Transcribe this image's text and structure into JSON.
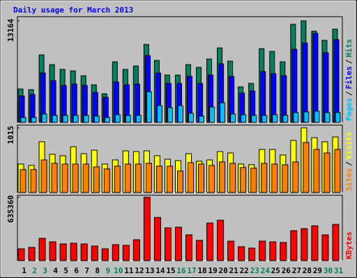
{
  "chart_data": [
    {
      "type": "bar",
      "title": "Daily usage for March 2013",
      "legend_separator": "/",
      "series": [
        {
          "name": "Hits",
          "color": "#00805c",
          "values": [
            4330,
            4240,
            8750,
            7490,
            6860,
            6680,
            6040,
            4870,
            3700,
            7850,
            6860,
            7310,
            10100,
            8030,
            6130,
            6130,
            7490,
            7130,
            8210,
            9650,
            7940,
            4600,
            5050,
            9560,
            9200,
            7850,
            12720,
            13164,
            11820,
            10640,
            12090
          ]
        },
        {
          "name": "Files",
          "color": "#0000ff",
          "values": [
            3430,
            3610,
            6400,
            5410,
            4780,
            4960,
            4780,
            3880,
            3250,
            5230,
            4870,
            4960,
            8660,
            6400,
            5050,
            5050,
            5950,
            5050,
            6130,
            7580,
            5950,
            3790,
            4060,
            6580,
            6310,
            6040,
            9470,
            10280,
            11550,
            9020,
            10730
          ]
        },
        {
          "name": "Pages",
          "color": "#00c0ff",
          "values": [
            630,
            630,
            1080,
            900,
            900,
            900,
            900,
            810,
            630,
            990,
            900,
            900,
            3970,
            2160,
            1890,
            2160,
            1170,
            810,
            1980,
            2530,
            1080,
            990,
            900,
            900,
            990,
            900,
            1260,
            1350,
            1440,
            1260,
            1260
          ]
        }
      ],
      "ylim": [
        0,
        13705
      ],
      "yticks": [
        13164
      ]
    },
    {
      "type": "bar",
      "legend_separator": "/",
      "series": [
        {
          "name": "Visits",
          "color": "#ffff00",
          "values": [
            447,
            425,
            796,
            600,
            578,
            719,
            610,
            665,
            447,
            512,
            654,
            643,
            654,
            578,
            523,
            501,
            610,
            491,
            512,
            643,
            621,
            447,
            436,
            676,
            676,
            589,
            818,
            1015,
            861,
            796,
            872
          ]
        },
        {
          "name": "Sites",
          "color": "#ff8000",
          "values": [
            360,
            360,
            512,
            458,
            447,
            447,
            447,
            403,
            371,
            414,
            447,
            447,
            458,
            414,
            414,
            338,
            469,
            447,
            425,
            480,
            458,
            392,
            382,
            458,
            447,
            436,
            480,
            785,
            676,
            621,
            676
          ]
        }
      ],
      "ylim": [
        0,
        1058
      ],
      "yticks": [
        1015
      ]
    },
    {
      "type": "bar",
      "series": [
        {
          "name": "KBytes",
          "color": "#ff0000",
          "values": [
            118700,
            132700,
            223400,
            188500,
            167600,
            174600,
            167600,
            146600,
            118700,
            160600,
            153600,
            209500,
            635360,
            432900,
            328200,
            335100,
            258300,
            202500,
            377000,
            405000,
            195500,
            139600,
            125700,
            195500,
            188500,
            181500,
            300200,
            321200,
            349100,
            258300,
            363100
          ]
        }
      ],
      "ylim": [
        0,
        655000
      ],
      "yticks": [
        635360
      ],
      "categories": [
        "1",
        "2",
        "3",
        "4",
        "5",
        "6",
        "7",
        "8",
        "9",
        "10",
        "11",
        "12",
        "13",
        "14",
        "15",
        "16",
        "17",
        "18",
        "19",
        "20",
        "21",
        "22",
        "23",
        "24",
        "25",
        "26",
        "27",
        "28",
        "29",
        "30",
        "31"
      ],
      "category_colors": [
        "#000000",
        "#00805c",
        "#00805c",
        "#000000",
        "#000000",
        "#000000",
        "#000000",
        "#000000",
        "#00805c",
        "#00805c",
        "#000000",
        "#000000",
        "#000000",
        "#000000",
        "#000000",
        "#00805c",
        "#00805c",
        "#000000",
        "#000000",
        "#000000",
        "#000000",
        "#000000",
        "#00805c",
        "#00805c",
        "#000000",
        "#000000",
        "#000000",
        "#000000",
        "#000000",
        "#00805c",
        "#00805c"
      ]
    }
  ]
}
